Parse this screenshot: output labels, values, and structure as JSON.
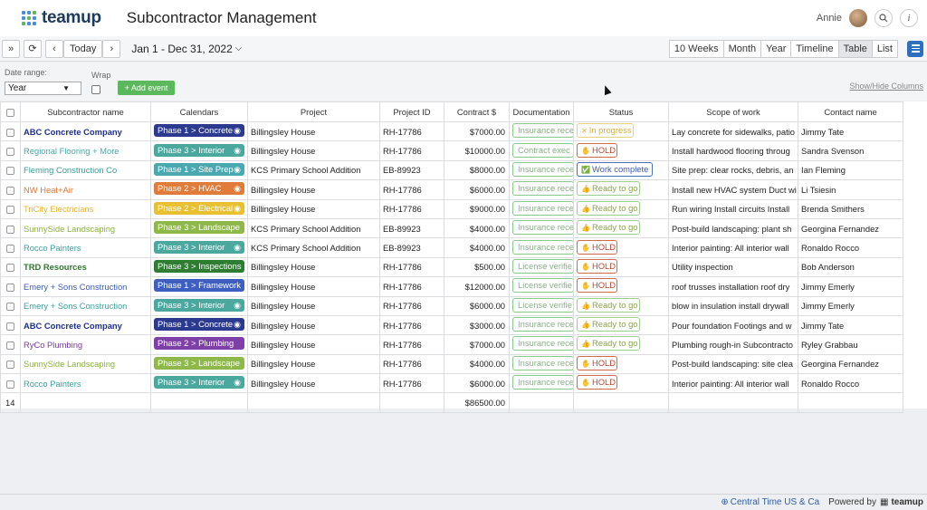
{
  "app": {
    "logo_text": "teamup",
    "page_title": "Subcontractor Management",
    "user_name": "Annie"
  },
  "toolbar": {
    "today_label": "Today",
    "date_range": "Jan 1 - Dec 31, 2022",
    "views": [
      "10 Weeks",
      "Month",
      "Year",
      "Timeline",
      "Table",
      "List"
    ],
    "active_view": "Table"
  },
  "filters": {
    "date_range_label": "Date range:",
    "date_range_value": "Year",
    "wrap_label": "Wrap",
    "add_event_label": "+ Add event",
    "show_hide_label": "Show/Hide Columns"
  },
  "table": {
    "columns": [
      "Subcontractor name",
      "Calendars",
      "Project",
      "Project ID",
      "Contract $",
      "Documentation",
      "Status",
      "Scope of work",
      "Contact name"
    ],
    "rows": [
      {
        "name": "ABC Concrete Company",
        "name_color": "#1f2f8a",
        "bold": true,
        "calendar": "Phase 1 > Concrete",
        "cal_color": "#2b3a8f",
        "project": "Billingsley House",
        "pid": "RH-17786",
        "contract": "$7000.00",
        "doc": "Insurance rece",
        "status": "In progress",
        "status_type": "prog",
        "scope": "Lay concrete for sidewalks, patio",
        "contact": "Jimmy Tate"
      },
      {
        "name": "Regional Flooring + More",
        "name_color": "#4aa8a8",
        "bold": false,
        "calendar": "Phase 3 > Interior",
        "cal_color": "#4aa89e",
        "project": "Billingsley House",
        "pid": "RH-17786",
        "contract": "$10000.00",
        "doc": "Contract exec",
        "status": "HOLD",
        "status_type": "hold",
        "scope": "Install hardwood flooring throug",
        "contact": "Sandra Svenson"
      },
      {
        "name": "Fleming Construction Co",
        "name_color": "#3b9a9a",
        "bold": false,
        "calendar": "Phase 1 > Site Prep",
        "cal_color": "#4aa8b0",
        "project": "KCS Primary School Addition",
        "pid": "EB-89923",
        "contract": "$8000.00",
        "doc": "Insurance rece",
        "status": "Work complete",
        "status_type": "done",
        "scope": "Site prep: clear rocks, debris, an",
        "contact": "Ian Fleming"
      },
      {
        "name": "NW Heat+Air",
        "name_color": "#e0783a",
        "bold": false,
        "calendar": "Phase 2 > HVAC",
        "cal_color": "#e07b39",
        "project": "Billingsley House",
        "pid": "RH-17786",
        "contract": "$6000.00",
        "doc": "Insurance rece",
        "status": "Ready to go",
        "status_type": "ready",
        "scope": "Install new HVAC system Duct wi",
        "contact": "Li Tsiesin"
      },
      {
        "name": "TriCity Electricians",
        "name_color": "#e8b530",
        "bold": false,
        "calendar": "Phase 2 > Electrical",
        "cal_color": "#e8c030",
        "project": "Billingsley House",
        "pid": "RH-17786",
        "contract": "$9000.00",
        "doc": "Insurance rece",
        "status": "Ready to go",
        "status_type": "ready",
        "scope": "Run wiring Install circuits  Install",
        "contact": "Brenda Smithers"
      },
      {
        "name": "SunnySide Landscaping",
        "name_color": "#8ab43a",
        "bold": false,
        "calendar": "Phase 3 > Landscape",
        "cal_color": "#8fb84a",
        "project": "KCS Primary School Addition",
        "pid": "EB-89923",
        "contract": "$4000.00",
        "doc": "Insurance rece",
        "status": "Ready to go",
        "status_type": "ready",
        "scope": "Post-build landscaping: plant sh",
        "contact": "Georgina Fernandez"
      },
      {
        "name": "Rocco Painters",
        "name_color": "#3aa0a0",
        "bold": false,
        "calendar": "Phase 3 > Interior",
        "cal_color": "#4aa89e",
        "project": "KCS Primary School Addition",
        "pid": "EB-89923",
        "contract": "$4000.00",
        "doc": "Insurance rece",
        "status": "HOLD",
        "status_type": "hold",
        "scope": "Interior painting: All interior wall",
        "contact": "Ronaldo Rocco"
      },
      {
        "name": "TRD Resources",
        "name_color": "#2f7a2f",
        "bold": true,
        "calendar": "Phase 3 > Inspections",
        "cal_color": "#2e7d32",
        "project": "Billingsley House",
        "pid": "RH-17786",
        "contract": "$500.00",
        "doc": "License verifie",
        "status": "HOLD",
        "status_type": "hold",
        "scope": "Utility inspection",
        "contact": "Bob Anderson"
      },
      {
        "name": "Emery + Sons Construction",
        "name_color": "#3a5ab0",
        "bold": false,
        "calendar": "Phase 1 > Framework",
        "cal_color": "#3f5fc0",
        "project": "Billingsley House",
        "pid": "RH-17786",
        "contract": "$12000.00",
        "doc": "License verifie",
        "status": "HOLD",
        "status_type": "hold",
        "scope": "roof trusses installation roof dry",
        "contact": "Jimmy Emerly"
      },
      {
        "name": "Emery + Sons Construction",
        "name_color": "#3aa0a0",
        "bold": false,
        "calendar": "Phase 3 > Interior",
        "cal_color": "#4aa89e",
        "project": "Billingsley House",
        "pid": "RH-17786",
        "contract": "$6000.00",
        "doc": "License verifie",
        "status": "Ready to go",
        "status_type": "ready",
        "scope": "blow in insulation install drywall",
        "contact": "Jimmy Emerly"
      },
      {
        "name": "ABC Concrete Company",
        "name_color": "#1f2f8a",
        "bold": true,
        "calendar": "Phase 1 > Concrete",
        "cal_color": "#2b3a8f",
        "project": "Billingsley House",
        "pid": "RH-17786",
        "contract": "$3000.00",
        "doc": "Insurance rece",
        "status": "Ready to go",
        "status_type": "ready",
        "scope": "Pour foundation Footings and w",
        "contact": "Jimmy Tate"
      },
      {
        "name": "RyCo Plumbing",
        "name_color": "#7a3aa0",
        "bold": false,
        "calendar": "Phase 2 > Plumbing",
        "cal_color": "#7e3fa8",
        "project": "Billingsley House",
        "pid": "RH-17786",
        "contract": "$7000.00",
        "doc": "Insurance rece",
        "status": "Ready to go",
        "status_type": "ready",
        "scope": "Plumbing rough-in Subcontracto",
        "contact": "Ryley Grabbau"
      },
      {
        "name": "SunnySide Landscaping",
        "name_color": "#8ab43a",
        "bold": false,
        "calendar": "Phase 3 > Landscape",
        "cal_color": "#8fb84a",
        "project": "Billingsley House",
        "pid": "RH-17786",
        "contract": "$4000.00",
        "doc": "Insurance rece",
        "status": "HOLD",
        "status_type": "hold",
        "scope": "Post-build landscaping: site clea",
        "contact": "Georgina Fernandez"
      },
      {
        "name": "Rocco Painters",
        "name_color": "#3aa0a0",
        "bold": false,
        "calendar": "Phase 3 > Interior",
        "cal_color": "#4aa89e",
        "project": "Billingsley House",
        "pid": "RH-17786",
        "contract": "$6000.00",
        "doc": "Insurance rece",
        "status": "HOLD",
        "status_type": "hold",
        "scope": "Interior painting: All interior wall",
        "contact": "Ronaldo Rocco"
      }
    ],
    "footer": {
      "count": "14",
      "total": "$86500.00"
    }
  },
  "status_icons": {
    "prog": "✕",
    "hold": "✋",
    "ready": "👍",
    "done": "✅"
  },
  "footer": {
    "timezone": "Central Time US & Ca",
    "powered_by": "Powered by",
    "brand": "teamup"
  }
}
